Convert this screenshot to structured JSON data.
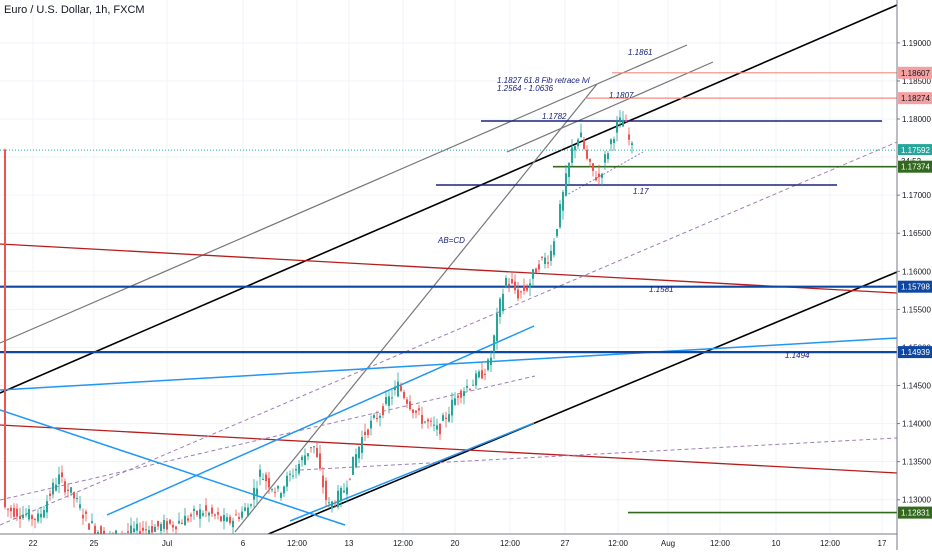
{
  "chart_data": {
    "type": "candlestick",
    "title": "Euro / U.S. Dollar, 1h, FXCM",
    "ylim": [
      1.1255,
      1.1955
    ],
    "grid": true,
    "y_ticks": [
      "1.13000",
      "1.13500",
      "1.14000",
      "1.14500",
      "1.15000",
      "1.15500",
      "1.16000",
      "1.16500",
      "1.17000",
      "1.17500",
      "1.18000",
      "1.18500",
      "1.19000"
    ],
    "x_ticks": [
      "22",
      "25",
      "Jul",
      "6",
      "12:00",
      "13",
      "12:00",
      "20",
      "12:00",
      "27",
      "12:00",
      "Aug",
      "12:00",
      "10",
      "12:00",
      "17"
    ],
    "price_badges": [
      {
        "value": "1.18607",
        "bg": "#f4a0a0",
        "fg": "#131722"
      },
      {
        "value": "1.18274",
        "bg": "#f4a0a0",
        "fg": "#131722"
      },
      {
        "value": "1.17592",
        "bg": "#26a69a",
        "fg": "#ffffff"
      },
      {
        "value": "34:52",
        "bg": "#ffffff",
        "fg": "#131722"
      },
      {
        "value": "1.17374",
        "bg": "#33691e",
        "fg": "#ffffff"
      },
      {
        "value": "1.15798",
        "bg": "#0d47a1",
        "fg": "#ffffff"
      },
      {
        "value": "1.14939",
        "bg": "#0d47a1",
        "fg": "#ffffff"
      },
      {
        "value": "1.12831",
        "bg": "#33691e",
        "fg": "#ffffff"
      }
    ],
    "annotations": [
      "1.1861",
      "1.1827 61.8 Fib retrace lvl",
      "1.2564 - 1.0636",
      "1.1807",
      "1.1782",
      "1.17",
      "AB=CD",
      "1.1581",
      "1.1494"
    ],
    "colors": {
      "up": "#26a69a",
      "down": "#ef5350",
      "navy": "#1a237e",
      "blue": "#0d47a1",
      "lightblue": "#2196f3",
      "darkred": "#b71c1c",
      "green": "#33691e",
      "pink": "#f28b82",
      "black": "#000000",
      "gray": "#777777",
      "purple": "#9e7fb3"
    }
  }
}
